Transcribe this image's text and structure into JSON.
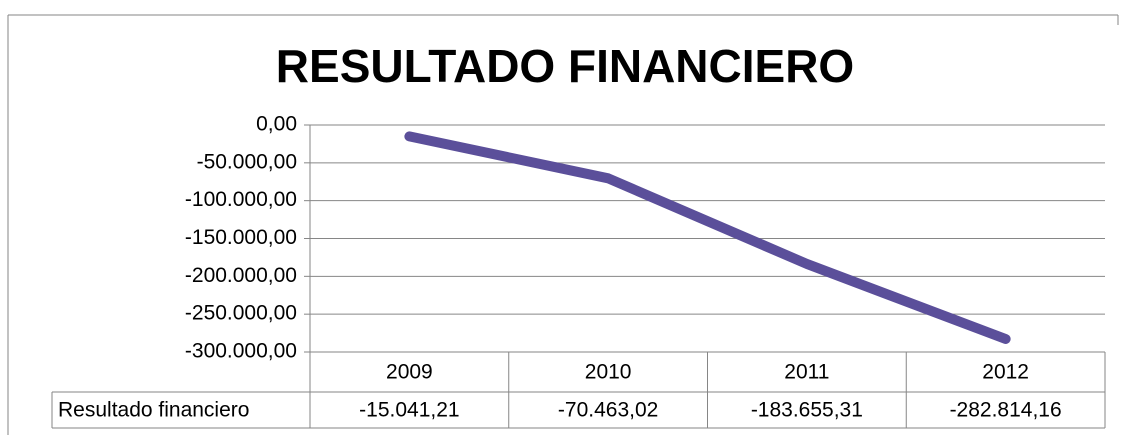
{
  "chart_data": {
    "type": "line",
    "title": "RESULTADO FINANCIERO",
    "categories": [
      "2009",
      "2010",
      "2011",
      "2012"
    ],
    "series": [
      {
        "name": "Resultado financiero",
        "color": "#5b4f9a",
        "values": [
          -15041.21,
          -70463.02,
          -183655.31,
          -282814.16
        ],
        "value_labels": [
          "-15.041,21",
          "-70.463,02",
          "-183.655,31",
          "-282.814,16"
        ]
      }
    ],
    "ylim": [
      -300000,
      0
    ],
    "yticks": [
      {
        "value": 0,
        "label": "0,00"
      },
      {
        "value": -50000,
        "label": "-50.000,00"
      },
      {
        "value": -100000,
        "label": "-100.000,00"
      },
      {
        "value": -150000,
        "label": "-150.000,00"
      },
      {
        "value": -200000,
        "label": "-200.000,00"
      },
      {
        "value": -250000,
        "label": "-250.000,00"
      },
      {
        "value": -300000,
        "label": "-300.000,00"
      }
    ],
    "grid": true,
    "data_table": true
  }
}
